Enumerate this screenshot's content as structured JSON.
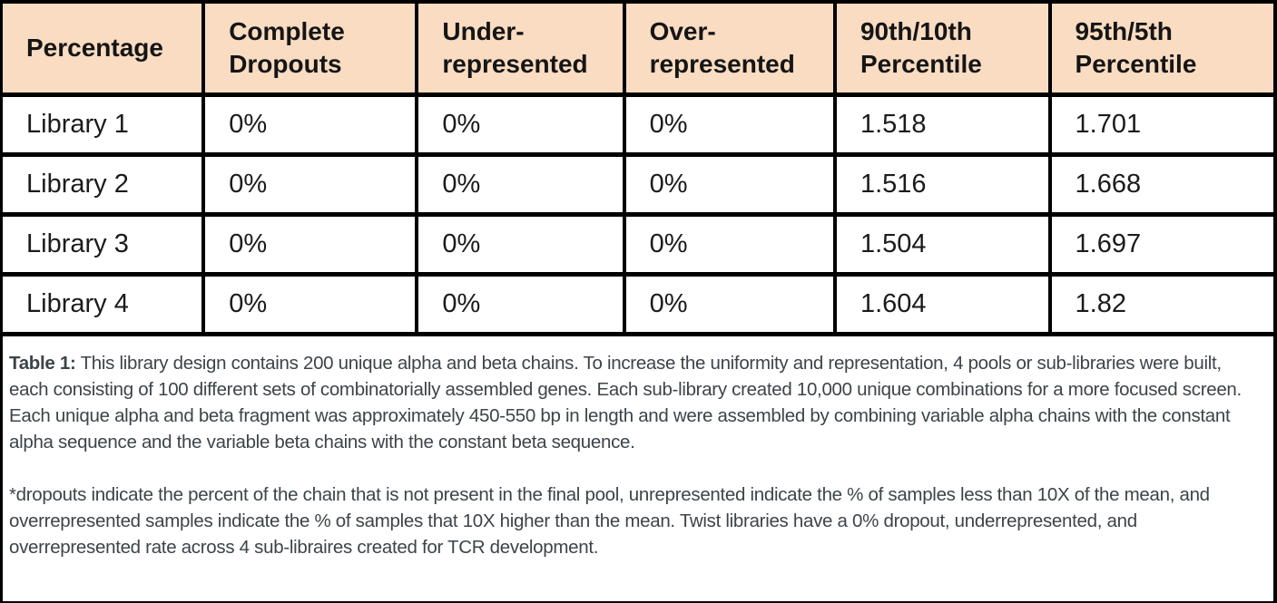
{
  "table": {
    "header": [
      "Percentage",
      "Complete\nDropouts",
      "Under-\nrepresented",
      "Over-\nrepresented",
      "90th/10th\nPercentile",
      "95th/5th\nPercentile"
    ],
    "rows": [
      [
        "Library 1",
        "0%",
        "0%",
        "0%",
        "1.518",
        "1.701"
      ],
      [
        "Library 2",
        "0%",
        "0%",
        "0%",
        "1.516",
        "1.668"
      ],
      [
        "Library 3",
        "0%",
        "0%",
        "0%",
        "1.504",
        "1.697"
      ],
      [
        "Library 4",
        "0%",
        "0%",
        "0%",
        "1.604",
        "1.82"
      ]
    ]
  },
  "caption": {
    "label": "Table 1:",
    "body": "This library design contains 200 unique alpha and beta chains. To increase the uniformity and representation, 4 pools or sub-libraries were built, each consisting of 100 different sets of combinatorially assembled genes. Each sub-library created 10,000 unique combinations for a more focused screen. Each unique alpha and beta fragment was approximately 450-550 bp in length and were assembled by combining variable alpha chains with the constant alpha sequence and the variable beta chains with the constant beta sequence.",
    "footnote": "*dropouts indicate the percent of the chain that is not present in the final pool, unrepresented indicate the % of samples less than 10X of the mean, and overrepresented samples indicate the % of samples that 10X higher than the mean. Twist libraries have a 0% dropout, underrepresented, and overrepresented rate across 4 sub-libraires created for TCR development."
  },
  "colors": {
    "header_bg": "#f9dcc1",
    "border": "#000000",
    "table_text": "#1b1b1b",
    "caption_text": "#3d4449"
  }
}
